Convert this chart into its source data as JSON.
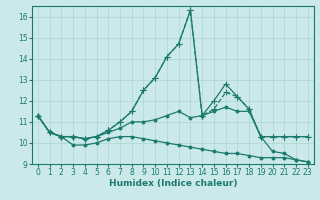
{
  "xlabel": "Humidex (Indice chaleur)",
  "xlim": [
    -0.5,
    23.5
  ],
  "ylim": [
    9,
    16.5
  ],
  "yticks": [
    9,
    10,
    11,
    12,
    13,
    14,
    15,
    16
  ],
  "xticks": [
    0,
    1,
    2,
    3,
    4,
    5,
    6,
    7,
    8,
    9,
    10,
    11,
    12,
    13,
    14,
    15,
    16,
    17,
    18,
    19,
    20,
    21,
    22,
    23
  ],
  "background_color": "#cce9e9",
  "grid_color": "#aad4d4",
  "line_color": "#1a7a6e",
  "series": [
    {
      "y": [
        11.3,
        10.5,
        10.3,
        10.3,
        10.2,
        10.3,
        10.5,
        10.7,
        11.0,
        11.0,
        11.1,
        11.3,
        11.5,
        11.2,
        11.3,
        11.5,
        11.7,
        11.5,
        11.5,
        10.3,
        9.6,
        9.5,
        9.2,
        9.1
      ],
      "linestyle": "-",
      "marker": "o",
      "markersize": 2.0,
      "linewidth": 0.9
    },
    {
      "y": [
        11.3,
        10.5,
        10.3,
        10.3,
        10.2,
        10.3,
        10.6,
        11.0,
        11.5,
        12.5,
        13.1,
        14.1,
        14.7,
        16.3,
        11.3,
        11.6,
        12.4,
        12.2,
        11.6,
        10.3,
        10.3,
        10.3,
        10.3,
        10.3
      ],
      "linestyle": "--",
      "marker": "+",
      "markersize": 4.0,
      "linewidth": 0.9
    },
    {
      "y": [
        11.3,
        10.5,
        10.3,
        10.3,
        10.2,
        10.3,
        10.6,
        11.0,
        11.5,
        12.5,
        13.1,
        14.1,
        14.7,
        16.3,
        11.3,
        12.0,
        12.8,
        12.2,
        11.6,
        10.3,
        10.3,
        10.3,
        10.3,
        10.3
      ],
      "linestyle": "-",
      "marker": "+",
      "markersize": 4.0,
      "linewidth": 0.9
    },
    {
      "y": [
        11.3,
        10.5,
        10.3,
        9.9,
        9.9,
        10.0,
        10.2,
        10.3,
        10.3,
        10.2,
        10.1,
        10.0,
        9.9,
        9.8,
        9.7,
        9.6,
        9.5,
        9.5,
        9.4,
        9.3,
        9.3,
        9.3,
        9.2,
        9.1
      ],
      "linestyle": "-",
      "marker": "o",
      "markersize": 2.0,
      "linewidth": 0.9
    }
  ]
}
